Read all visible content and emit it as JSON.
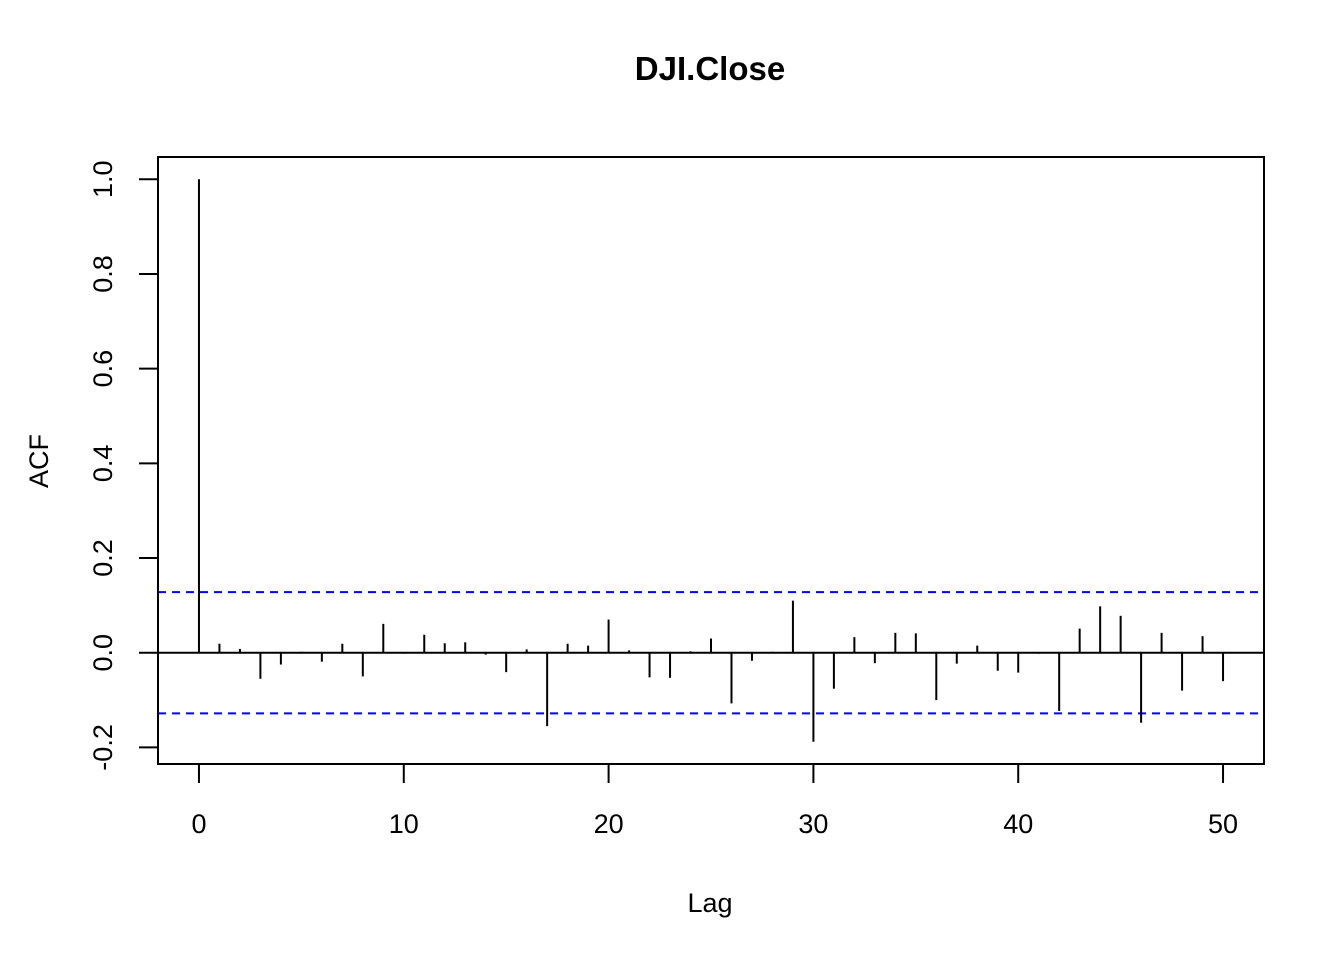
{
  "chart_data": {
    "type": "bar",
    "title": "DJI.Close",
    "xlabel": "Lag",
    "ylabel": "ACF",
    "xlim": [
      -2,
      52
    ],
    "ylim": [
      -0.235,
      1.047
    ],
    "x_ticks": [
      0,
      10,
      20,
      30,
      40,
      50
    ],
    "x_tick_labels": [
      "0",
      "10",
      "20",
      "30",
      "40",
      "50"
    ],
    "y_ticks": [
      -0.2,
      0.0,
      0.2,
      0.4,
      0.6,
      0.8,
      1.0
    ],
    "y_tick_labels": [
      "-0.2",
      "0.0",
      "0.2",
      "0.4",
      "0.6",
      "0.8",
      "1.0"
    ],
    "confidence_bound": 0.128,
    "bound_color": "#0000ff",
    "bar_color": "#000000",
    "grid": false,
    "lags": [
      0,
      1,
      2,
      3,
      4,
      5,
      6,
      7,
      8,
      9,
      10,
      11,
      12,
      13,
      14,
      15,
      16,
      17,
      18,
      19,
      20,
      21,
      22,
      23,
      24,
      25,
      26,
      27,
      28,
      29,
      30,
      31,
      32,
      33,
      34,
      35,
      36,
      37,
      38,
      39,
      40,
      41,
      42,
      43,
      44,
      45,
      46,
      47,
      48,
      49,
      50
    ],
    "values": [
      1.0,
      0.019,
      0.008,
      -0.055,
      -0.025,
      0.002,
      -0.019,
      0.019,
      -0.05,
      0.061,
      -0.002,
      0.038,
      0.02,
      0.022,
      -0.004,
      -0.041,
      0.007,
      -0.155,
      0.019,
      0.015,
      0.07,
      0.005,
      -0.052,
      -0.053,
      0.003,
      0.03,
      -0.107,
      -0.017,
      0.002,
      0.11,
      -0.188,
      -0.076,
      0.033,
      -0.022,
      0.042,
      0.041,
      -0.1,
      -0.023,
      0.015,
      -0.038,
      -0.042,
      -0.002,
      -0.123,
      0.051,
      0.098,
      0.078,
      -0.148,
      0.042,
      -0.08,
      0.035,
      -0.06
    ]
  }
}
